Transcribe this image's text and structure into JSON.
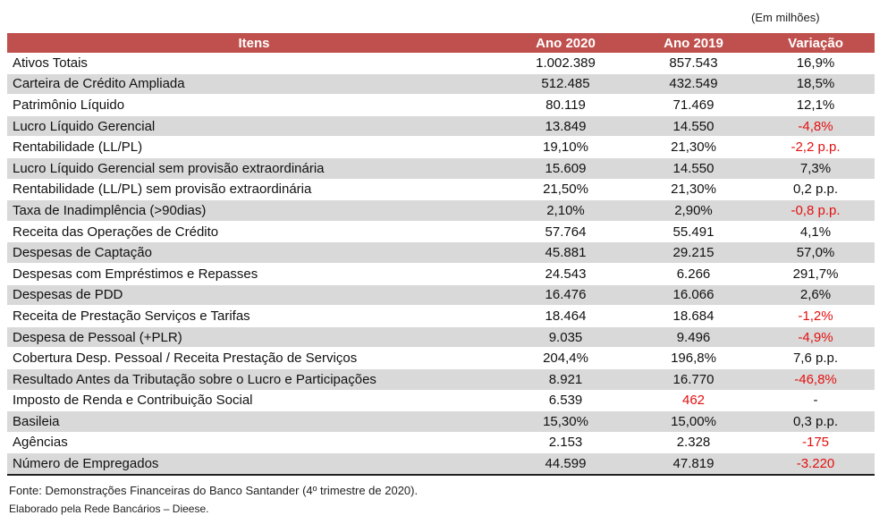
{
  "unit_note": "(Em milhões)",
  "table": {
    "headers": [
      "Itens",
      "Ano 2020",
      "Ano 2019",
      "Variação"
    ],
    "rows": [
      {
        "item": "Ativos Totais",
        "y2020": "1.002.389",
        "y2019": "857.543",
        "variation": "16,9%"
      },
      {
        "item": "Carteira de Crédito Ampliada",
        "y2020": "512.485",
        "y2019": "432.549",
        "variation": "18,5%"
      },
      {
        "item": "Patrimônio Líquido",
        "y2020": "80.119",
        "y2019": "71.469",
        "variation": "12,1%"
      },
      {
        "item": "Lucro Líquido Gerencial",
        "y2020": "13.849",
        "y2019": "14.550",
        "variation": "-4,8%"
      },
      {
        "item": "Rentabilidade (LL/PL)",
        "y2020": "19,10%",
        "y2019": "21,30%",
        "variation": "-2,2 p.p."
      },
      {
        "item": "Lucro Líquido Gerencial sem provisão extraordinária",
        "y2020": "15.609",
        "y2019": "14.550",
        "variation": "7,3%"
      },
      {
        "item": "Rentabilidade (LL/PL) sem provisão extraordinária",
        "y2020": "21,50%",
        "y2019": "21,30%",
        "variation": "0,2 p.p."
      },
      {
        "item": "Taxa de Inadimplência (>90dias)",
        "y2020": "2,10%",
        "y2019": "2,90%",
        "variation": "-0,8 p.p."
      },
      {
        "item": "Receita das Operações de Crédito",
        "y2020": "57.764",
        "y2019": "55.491",
        "variation": "4,1%"
      },
      {
        "item": "Despesas de Captação",
        "y2020": "45.881",
        "y2019": "29.215",
        "variation": "57,0%"
      },
      {
        "item": "Despesas com Empréstimos e Repasses",
        "y2020": "24.543",
        "y2019": "6.266",
        "variation": "291,7%"
      },
      {
        "item": "Despesas de PDD",
        "y2020": "16.476",
        "y2019": "16.066",
        "variation": "2,6%"
      },
      {
        "item": "Receita de Prestação Serviços e Tarifas",
        "y2020": "18.464",
        "y2019": "18.684",
        "variation": "-1,2%"
      },
      {
        "item": "Despesa de Pessoal (+PLR)",
        "y2020": "9.035",
        "y2019": "9.496",
        "variation": "-4,9%"
      },
      {
        "item": "Cobertura Desp. Pessoal / Receita Prestação de Serviços",
        "y2020": "204,4%",
        "y2019": "196,8%",
        "variation": "7,6 p.p."
      },
      {
        "item": "Resultado Antes da Tributação sobre o Lucro e Participações",
        "y2020": "8.921",
        "y2019": "16.770",
        "variation": "-46,8%"
      },
      {
        "item": "Imposto de Renda e Contribuição Social",
        "y2020": "6.539",
        "y2019": "462",
        "variation": "-"
      },
      {
        "item": "Basileia",
        "y2020": "15,30%",
        "y2019": "15,00%",
        "variation": "0,3 p.p."
      },
      {
        "item": "Agências",
        "y2020": "2.153",
        "y2019": "2.328",
        "variation": "-175"
      },
      {
        "item": "Número de Empregados",
        "y2020": "44.599",
        "y2019": "47.819",
        "variation": "-3.220"
      }
    ]
  },
  "footer": {
    "source": "Fonte: Demonstrações Financeiras do Banco Santander (4º trimestre de 2020).",
    "credit": "Elaborado pela Rede Bancários – Dieese."
  },
  "colors": {
    "header_bg": "#c0504d",
    "negative_text": "#e3100f",
    "stripe": "#d9d9d9"
  }
}
